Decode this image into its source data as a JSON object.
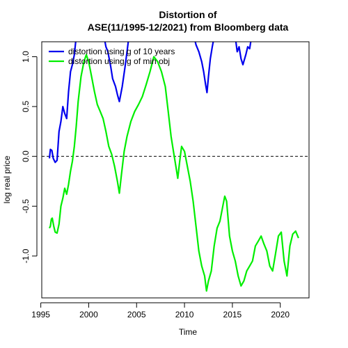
{
  "chart_data": {
    "type": "line",
    "title_line1": "Distortion of",
    "title_line2": "ASE(11/1995-12/2021) from Bloomberg data",
    "xlabel": "Time",
    "ylabel": "log real price",
    "xlim": [
      1995.1,
      2023.0
    ],
    "ylim": [
      -1.42,
      1.15
    ],
    "x_ticks": [
      1995,
      2000,
      2005,
      2010,
      2015,
      2020
    ],
    "x_tick_labels": [
      "1995",
      "2000",
      "2005",
      "2010",
      "2015",
      "2020"
    ],
    "y_ticks": [
      -1.0,
      -0.5,
      0.0,
      0.5,
      1.0
    ],
    "y_tick_labels": [
      "-1.0",
      "-0.5",
      "0.0",
      "0.5",
      "1.0"
    ],
    "reference_line": {
      "y": 0.0,
      "style": "dashed",
      "color": "#000000"
    },
    "legend_position": "top-left",
    "series": [
      {
        "name": "distortion using g of 10 years",
        "color": "#0000ee",
        "points": [
          [
            1995.9,
            -0.02
          ],
          [
            1996.0,
            0.07
          ],
          [
            1996.15,
            0.06
          ],
          [
            1996.3,
            -0.02
          ],
          [
            1996.5,
            -0.06
          ],
          [
            1996.7,
            -0.04
          ],
          [
            1996.9,
            0.25
          ],
          [
            1997.1,
            0.35
          ],
          [
            1997.3,
            0.5
          ],
          [
            1997.5,
            0.43
          ],
          [
            1997.7,
            0.38
          ],
          [
            1997.9,
            0.65
          ],
          [
            1998.1,
            0.85
          ],
          [
            1998.3,
            0.92
          ],
          [
            1998.5,
            1.02
          ],
          [
            1998.7,
            1.2
          ],
          [
            2001.6,
            1.2
          ],
          [
            2001.8,
            1.1
          ],
          [
            2002.0,
            1.05
          ],
          [
            2002.3,
            0.9
          ],
          [
            2002.5,
            0.78
          ],
          [
            2002.8,
            0.7
          ],
          [
            2003.0,
            0.62
          ],
          [
            2003.2,
            0.55
          ],
          [
            2003.5,
            0.7
          ],
          [
            2003.8,
            0.9
          ],
          [
            2004.0,
            1.05
          ],
          [
            2004.2,
            1.2
          ],
          [
            2011.0,
            1.2
          ],
          [
            2011.2,
            1.12
          ],
          [
            2011.5,
            1.05
          ],
          [
            2011.8,
            0.95
          ],
          [
            2012.0,
            0.85
          ],
          [
            2012.2,
            0.72
          ],
          [
            2012.35,
            0.64
          ],
          [
            2012.5,
            0.8
          ],
          [
            2012.7,
            0.98
          ],
          [
            2012.9,
            1.1
          ],
          [
            2013.1,
            1.2
          ],
          [
            2015.3,
            1.2
          ],
          [
            2015.5,
            1.05
          ],
          [
            2015.7,
            1.1
          ],
          [
            2015.9,
            0.98
          ],
          [
            2016.1,
            0.92
          ],
          [
            2016.4,
            1.02
          ],
          [
            2016.6,
            1.1
          ],
          [
            2016.8,
            1.08
          ],
          [
            2017.0,
            1.2
          ]
        ]
      },
      {
        "name": "distortion using g of min obj",
        "color": "#00ee00",
        "points": [
          [
            1995.9,
            -0.72
          ],
          [
            1996.0,
            -0.7
          ],
          [
            1996.1,
            -0.63
          ],
          [
            1996.2,
            -0.62
          ],
          [
            1996.35,
            -0.7
          ],
          [
            1996.5,
            -0.76
          ],
          [
            1996.7,
            -0.77
          ],
          [
            1996.9,
            -0.68
          ],
          [
            1997.1,
            -0.5
          ],
          [
            1997.3,
            -0.42
          ],
          [
            1997.5,
            -0.32
          ],
          [
            1997.7,
            -0.38
          ],
          [
            1997.9,
            -0.28
          ],
          [
            1998.1,
            -0.15
          ],
          [
            1998.3,
            -0.05
          ],
          [
            1998.5,
            0.1
          ],
          [
            1998.7,
            0.3
          ],
          [
            1998.9,
            0.55
          ],
          [
            1999.2,
            0.8
          ],
          [
            1999.5,
            0.95
          ],
          [
            1999.75,
            1.02
          ],
          [
            2000.0,
            0.95
          ],
          [
            2000.3,
            0.8
          ],
          [
            2000.6,
            0.65
          ],
          [
            2000.9,
            0.52
          ],
          [
            2001.2,
            0.45
          ],
          [
            2001.5,
            0.38
          ],
          [
            2001.8,
            0.25
          ],
          [
            2002.1,
            0.1
          ],
          [
            2002.4,
            0.02
          ],
          [
            2002.7,
            -0.1
          ],
          [
            2003.0,
            -0.25
          ],
          [
            2003.2,
            -0.37
          ],
          [
            2003.4,
            -0.2
          ],
          [
            2003.7,
            0.05
          ],
          [
            2004.0,
            0.2
          ],
          [
            2004.4,
            0.35
          ],
          [
            2004.8,
            0.45
          ],
          [
            2005.2,
            0.52
          ],
          [
            2005.6,
            0.6
          ],
          [
            2006.0,
            0.72
          ],
          [
            2006.4,
            0.85
          ],
          [
            2006.8,
            1.0
          ],
          [
            2007.2,
            0.95
          ],
          [
            2007.6,
            0.85
          ],
          [
            2008.0,
            0.7
          ],
          [
            2008.3,
            0.45
          ],
          [
            2008.6,
            0.2
          ],
          [
            2008.9,
            0.02
          ],
          [
            2009.1,
            -0.1
          ],
          [
            2009.3,
            -0.22
          ],
          [
            2009.5,
            -0.05
          ],
          [
            2009.7,
            0.1
          ],
          [
            2010.0,
            0.05
          ],
          [
            2010.3,
            -0.1
          ],
          [
            2010.6,
            -0.25
          ],
          [
            2010.9,
            -0.45
          ],
          [
            2011.2,
            -0.7
          ],
          [
            2011.5,
            -0.95
          ],
          [
            2011.8,
            -1.1
          ],
          [
            2012.1,
            -1.2
          ],
          [
            2012.3,
            -1.35
          ],
          [
            2012.5,
            -1.25
          ],
          [
            2012.8,
            -1.15
          ],
          [
            2013.1,
            -0.9
          ],
          [
            2013.4,
            -0.72
          ],
          [
            2013.7,
            -0.65
          ],
          [
            2014.0,
            -0.5
          ],
          [
            2014.2,
            -0.4
          ],
          [
            2014.4,
            -0.45
          ],
          [
            2014.7,
            -0.8
          ],
          [
            2015.0,
            -0.95
          ],
          [
            2015.3,
            -1.05
          ],
          [
            2015.6,
            -1.2
          ],
          [
            2015.9,
            -1.3
          ],
          [
            2016.2,
            -1.25
          ],
          [
            2016.5,
            -1.15
          ],
          [
            2016.8,
            -1.1
          ],
          [
            2017.1,
            -1.05
          ],
          [
            2017.4,
            -0.9
          ],
          [
            2017.7,
            -0.85
          ],
          [
            2018.0,
            -0.8
          ],
          [
            2018.3,
            -0.88
          ],
          [
            2018.6,
            -0.95
          ],
          [
            2018.9,
            -1.1
          ],
          [
            2019.2,
            -1.15
          ],
          [
            2019.5,
            -0.98
          ],
          [
            2019.8,
            -0.8
          ],
          [
            2020.1,
            -0.76
          ],
          [
            2020.4,
            -1.05
          ],
          [
            2020.7,
            -1.2
          ],
          [
            2021.0,
            -0.9
          ],
          [
            2021.3,
            -0.78
          ],
          [
            2021.6,
            -0.75
          ],
          [
            2021.9,
            -0.82
          ]
        ]
      }
    ]
  }
}
